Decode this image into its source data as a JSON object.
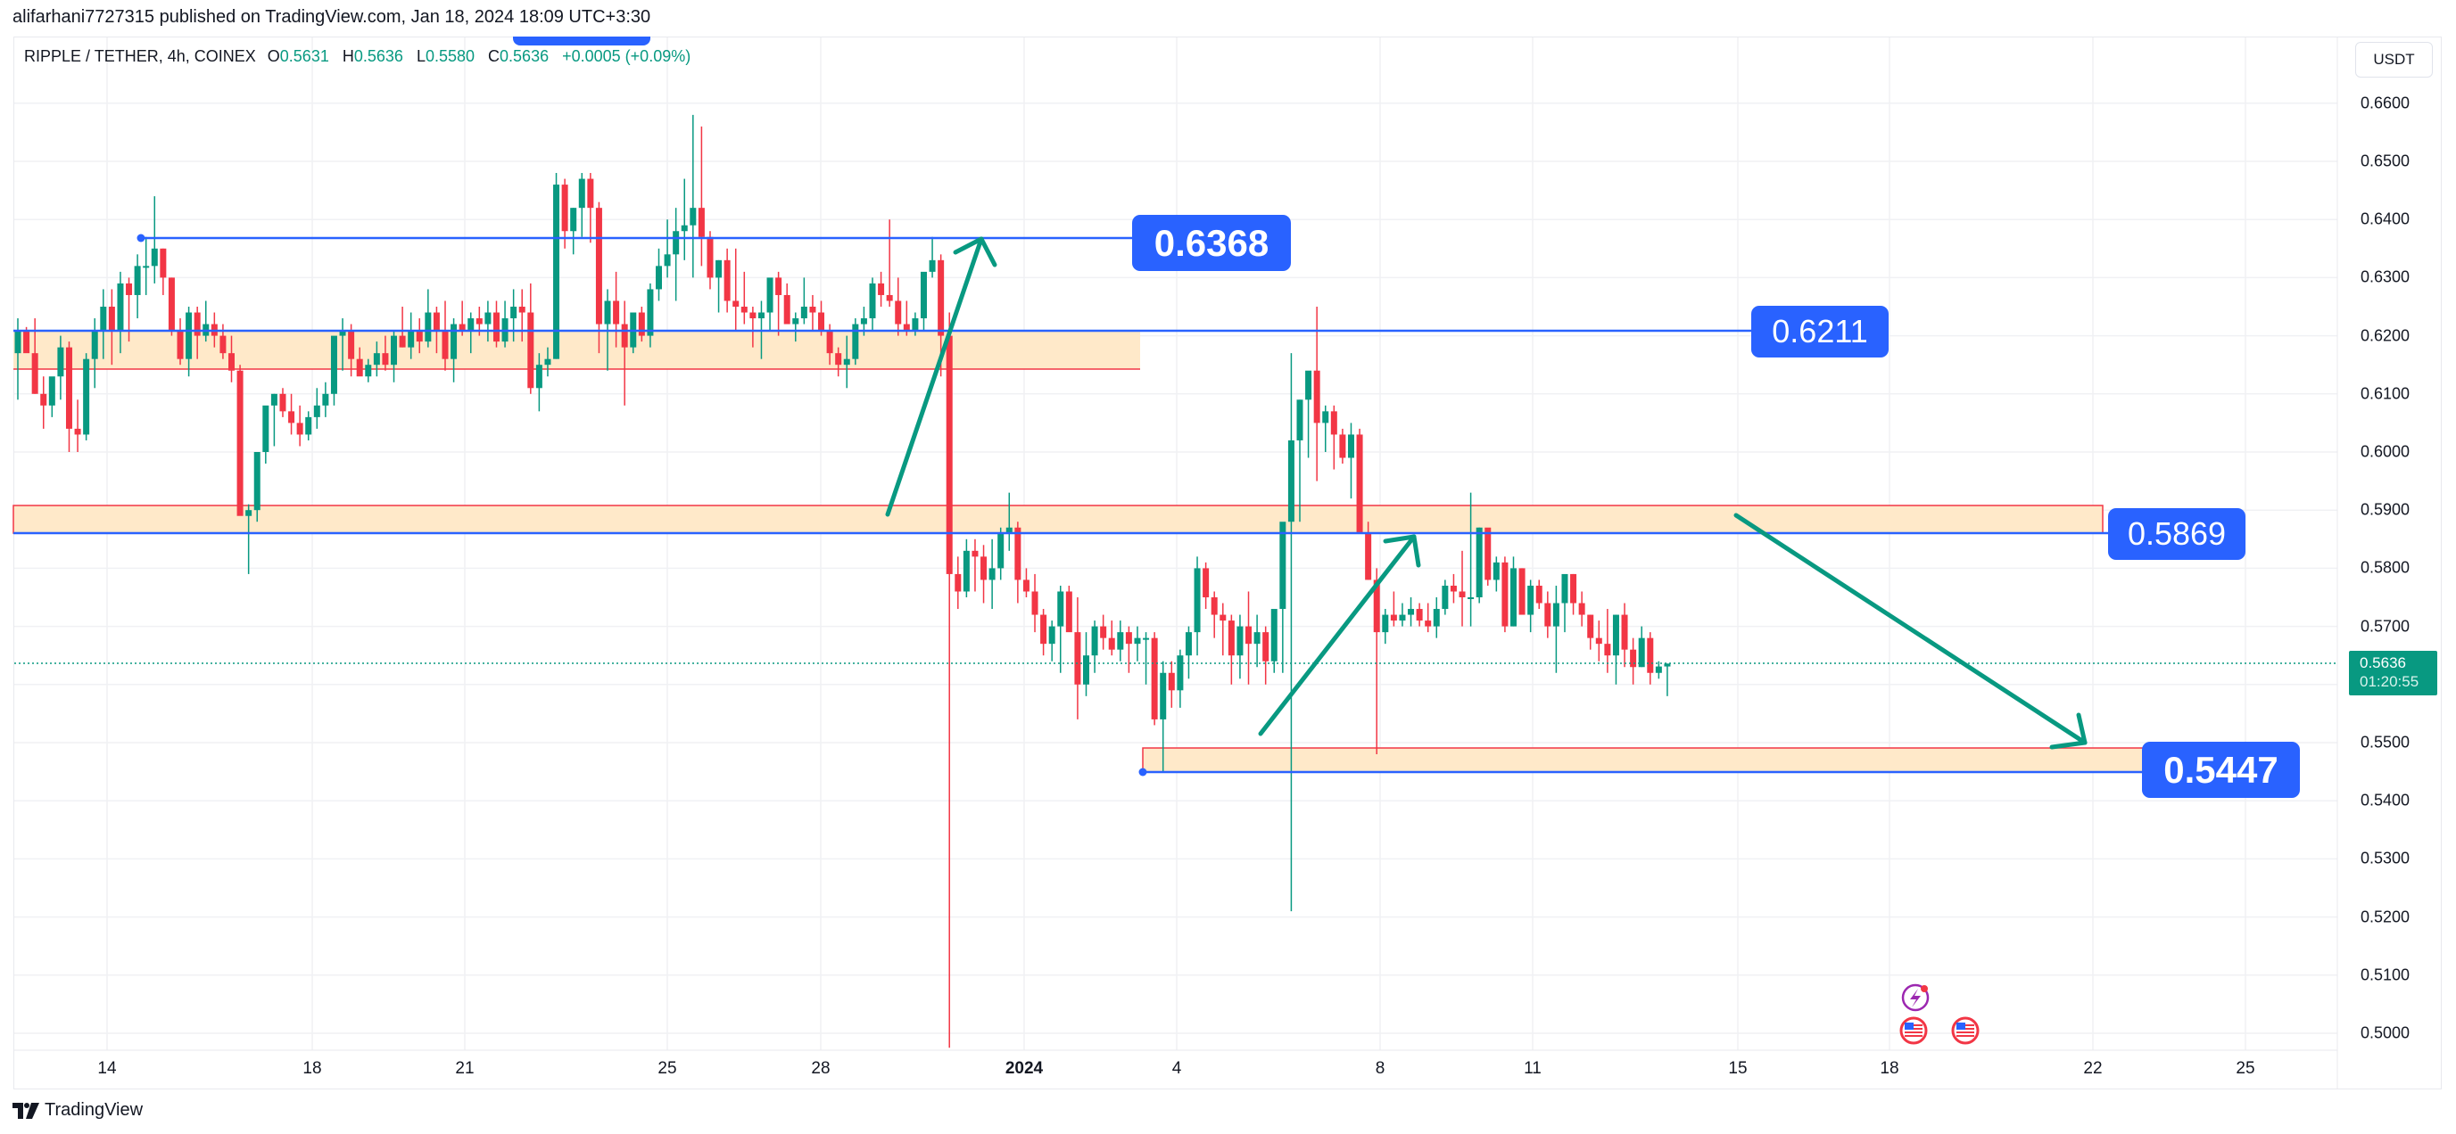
{
  "header": {
    "publisher_text": "alifarhani7727315 published on TradingView.com, Jan 18, 2024 18:09 UTC+3:30"
  },
  "legend": {
    "symbol": "RIPPLE / TETHER, 4h, COINEX",
    "open_label": "O",
    "open": "0.5631",
    "high_label": "H",
    "high": "0.5636",
    "low_label": "L",
    "low": "0.5580",
    "close_label": "C",
    "close": "0.5636",
    "change": "+0.0005 (+0.09%)"
  },
  "price_axis": {
    "unit_button": "USDT",
    "ticks": [
      "0.6600",
      "0.6500",
      "0.6400",
      "0.6300",
      "0.6200",
      "0.6100",
      "0.6000",
      "0.5900",
      "0.5800",
      "0.5700",
      "0.5500",
      "0.5400",
      "0.5300",
      "0.5200",
      "0.5100",
      "0.5000"
    ],
    "current_price": "0.5636",
    "countdown": "01:20:55"
  },
  "time_axis": {
    "ticks": [
      {
        "label": "14",
        "x": 120,
        "bold": false
      },
      {
        "label": "18",
        "x": 350,
        "bold": false
      },
      {
        "label": "21",
        "x": 521,
        "bold": false
      },
      {
        "label": "25",
        "x": 748,
        "bold": false
      },
      {
        "label": "28",
        "x": 920,
        "bold": false
      },
      {
        "label": "2024",
        "x": 1148,
        "bold": true
      },
      {
        "label": "4",
        "x": 1319,
        "bold": false
      },
      {
        "label": "8",
        "x": 1547,
        "bold": false
      },
      {
        "label": "11",
        "x": 1718,
        "bold": false
      },
      {
        "label": "15",
        "x": 1948,
        "bold": false
      },
      {
        "label": "18",
        "x": 2118,
        "bold": false
      },
      {
        "label": "22",
        "x": 2346,
        "bold": false
      },
      {
        "label": "25",
        "x": 2517,
        "bold": false
      }
    ]
  },
  "annotations": {
    "level_1": "0.6368",
    "level_2": "0.6211",
    "level_3": "0.5869",
    "level_4": "0.5447"
  },
  "colors": {
    "up": "#089981",
    "down": "#f23645",
    "drawing_blue": "#2962ff",
    "zone_fill": "#ffe9c9",
    "zone_border": "#f23645",
    "arrow": "#089981"
  },
  "footer": {
    "brand": "TradingView"
  },
  "chart_data": {
    "type": "candlestick",
    "title": "RIPPLE / TETHER, 4h, COINEX",
    "ylabel": "USDT",
    "ylim": [
      0.4975,
      0.662
    ],
    "x_ticks": [
      "14",
      "18",
      "21",
      "25",
      "28",
      "2024",
      "4",
      "8",
      "11",
      "15",
      "18",
      "22",
      "25"
    ],
    "horizontal_levels": [
      0.6368,
      0.6211,
      0.5869,
      0.5447
    ],
    "zones": [
      {
        "from": 0.615,
        "to": 0.6211
      },
      {
        "from": 0.5869,
        "to": 0.591
      },
      {
        "from": 0.5447,
        "to": 0.5485
      }
    ],
    "last": {
      "open": 0.5631,
      "high": 0.5636,
      "low": 0.558,
      "close": 0.5636
    },
    "candles": [
      [
        0.617,
        0.623,
        0.609,
        0.621
      ],
      [
        0.621,
        0.6215,
        0.618,
        0.617
      ],
      [
        0.617,
        0.623,
        0.61,
        0.61
      ],
      [
        0.61,
        0.613,
        0.604,
        0.608
      ],
      [
        0.608,
        0.611,
        0.606,
        0.613
      ],
      [
        0.613,
        0.62,
        0.609,
        0.618
      ],
      [
        0.618,
        0.619,
        0.6,
        0.604
      ],
      [
        0.604,
        0.609,
        0.6,
        0.603
      ],
      [
        0.603,
        0.617,
        0.602,
        0.616
      ],
      [
        0.616,
        0.623,
        0.611,
        0.621
      ],
      [
        0.621,
        0.628,
        0.616,
        0.625
      ],
      [
        0.625,
        0.628,
        0.615,
        0.621
      ],
      [
        0.621,
        0.631,
        0.617,
        0.629
      ],
      [
        0.629,
        0.63,
        0.619,
        0.627
      ],
      [
        0.627,
        0.634,
        0.623,
        0.632
      ],
      [
        0.632,
        0.637,
        0.627,
        0.632
      ],
      [
        0.632,
        0.644,
        0.629,
        0.635
      ],
      [
        0.635,
        0.635,
        0.627,
        0.63
      ],
      [
        0.63,
        0.63,
        0.62,
        0.621
      ],
      [
        0.621,
        0.623,
        0.615,
        0.616
      ],
      [
        0.616,
        0.625,
        0.613,
        0.624
      ],
      [
        0.624,
        0.625,
        0.616,
        0.62
      ],
      [
        0.62,
        0.626,
        0.619,
        0.622
      ],
      [
        0.622,
        0.624,
        0.618,
        0.62
      ],
      [
        0.62,
        0.622,
        0.616,
        0.617
      ],
      [
        0.617,
        0.62,
        0.612,
        0.614
      ],
      [
        0.614,
        0.615,
        0.59,
        0.589
      ],
      [
        0.589,
        0.591,
        0.579,
        0.59
      ],
      [
        0.59,
        0.595,
        0.588,
        0.6
      ],
      [
        0.6,
        0.605,
        0.598,
        0.608
      ],
      [
        0.608,
        0.61,
        0.601,
        0.61
      ],
      [
        0.61,
        0.611,
        0.606,
        0.607
      ],
      [
        0.607,
        0.61,
        0.603,
        0.605
      ],
      [
        0.605,
        0.608,
        0.601,
        0.603
      ],
      [
        0.603,
        0.607,
        0.602,
        0.606
      ],
      [
        0.606,
        0.611,
        0.604,
        0.608
      ],
      [
        0.608,
        0.612,
        0.606,
        0.61
      ],
      [
        0.61,
        0.617,
        0.608,
        0.62
      ],
      [
        0.62,
        0.623,
        0.614,
        0.621
      ],
      [
        0.621,
        0.622,
        0.613,
        0.616
      ],
      [
        0.616,
        0.618,
        0.614,
        0.613
      ],
      [
        0.613,
        0.616,
        0.612,
        0.615
      ],
      [
        0.615,
        0.619,
        0.613,
        0.617
      ],
      [
        0.617,
        0.62,
        0.614,
        0.615
      ],
      [
        0.615,
        0.621,
        0.612,
        0.62
      ],
      [
        0.62,
        0.625,
        0.618,
        0.618
      ],
      [
        0.618,
        0.624,
        0.616,
        0.621
      ],
      [
        0.621,
        0.623,
        0.617,
        0.619
      ],
      [
        0.619,
        0.628,
        0.618,
        0.624
      ],
      [
        0.624,
        0.625,
        0.617,
        0.621
      ],
      [
        0.621,
        0.626,
        0.614,
        0.616
      ],
      [
        0.616,
        0.623,
        0.612,
        0.622
      ],
      [
        0.622,
        0.626,
        0.62,
        0.621
      ],
      [
        0.621,
        0.624,
        0.617,
        0.623
      ],
      [
        0.623,
        0.625,
        0.62,
        0.622
      ],
      [
        0.622,
        0.626,
        0.619,
        0.624
      ],
      [
        0.624,
        0.626,
        0.618,
        0.619
      ],
      [
        0.619,
        0.626,
        0.618,
        0.623
      ],
      [
        0.623,
        0.628,
        0.619,
        0.625
      ],
      [
        0.625,
        0.628,
        0.619,
        0.624
      ],
      [
        0.624,
        0.629,
        0.61,
        0.611
      ],
      [
        0.611,
        0.617,
        0.607,
        0.615
      ],
      [
        0.615,
        0.618,
        0.613,
        0.616
      ],
      [
        0.616,
        0.648,
        0.616,
        0.646
      ],
      [
        0.646,
        0.647,
        0.635,
        0.638
      ],
      [
        0.638,
        0.642,
        0.634,
        0.642
      ],
      [
        0.642,
        0.648,
        0.637,
        0.647
      ],
      [
        0.647,
        0.648,
        0.636,
        0.642
      ],
      [
        0.642,
        0.643,
        0.617,
        0.622
      ],
      [
        0.622,
        0.628,
        0.614,
        0.626
      ],
      [
        0.626,
        0.631,
        0.618,
        0.622
      ],
      [
        0.622,
        0.626,
        0.608,
        0.618
      ],
      [
        0.618,
        0.623,
        0.617,
        0.624
      ],
      [
        0.624,
        0.625,
        0.619,
        0.62
      ],
      [
        0.62,
        0.629,
        0.618,
        0.628
      ],
      [
        0.628,
        0.635,
        0.626,
        0.632
      ],
      [
        0.632,
        0.64,
        0.63,
        0.634
      ],
      [
        0.634,
        0.642,
        0.626,
        0.638
      ],
      [
        0.638,
        0.647,
        0.633,
        0.639
      ],
      [
        0.639,
        0.658,
        0.63,
        0.642
      ],
      [
        0.642,
        0.656,
        0.632,
        0.637
      ],
      [
        0.637,
        0.638,
        0.628,
        0.63
      ],
      [
        0.63,
        0.633,
        0.624,
        0.633
      ],
      [
        0.633,
        0.635,
        0.624,
        0.626
      ],
      [
        0.626,
        0.635,
        0.621,
        0.625
      ],
      [
        0.625,
        0.631,
        0.622,
        0.624
      ],
      [
        0.624,
        0.625,
        0.618,
        0.623
      ],
      [
        0.623,
        0.626,
        0.616,
        0.624
      ],
      [
        0.624,
        0.629,
        0.621,
        0.63
      ],
      [
        0.63,
        0.631,
        0.62,
        0.627
      ],
      [
        0.627,
        0.629,
        0.623,
        0.622
      ],
      [
        0.622,
        0.624,
        0.619,
        0.623
      ],
      [
        0.623,
        0.63,
        0.622,
        0.625
      ],
      [
        0.625,
        0.627,
        0.621,
        0.624
      ],
      [
        0.624,
        0.626,
        0.62,
        0.621
      ],
      [
        0.621,
        0.622,
        0.615,
        0.617
      ],
      [
        0.617,
        0.618,
        0.613,
        0.615
      ],
      [
        0.615,
        0.62,
        0.611,
        0.616
      ],
      [
        0.616,
        0.623,
        0.615,
        0.622
      ],
      [
        0.622,
        0.625,
        0.62,
        0.623
      ],
      [
        0.623,
        0.63,
        0.621,
        0.629
      ],
      [
        0.629,
        0.631,
        0.625,
        0.627
      ],
      [
        0.627,
        0.64,
        0.625,
        0.626
      ],
      [
        0.626,
        0.63,
        0.62,
        0.622
      ],
      [
        0.622,
        0.626,
        0.62,
        0.621
      ],
      [
        0.621,
        0.624,
        0.62,
        0.623
      ],
      [
        0.623,
        0.63,
        0.621,
        0.631
      ],
      [
        0.631,
        0.637,
        0.63,
        0.633
      ],
      [
        0.633,
        0.634,
        0.613,
        0.62
      ],
      [
        0.62,
        0.624,
        0.4975,
        0.579
      ],
      [
        0.579,
        0.582,
        0.573,
        0.576
      ],
      [
        0.576,
        0.585,
        0.575,
        0.583
      ],
      [
        0.583,
        0.585,
        0.576,
        0.582
      ],
      [
        0.582,
        0.584,
        0.574,
        0.578
      ],
      [
        0.578,
        0.585,
        0.573,
        0.58
      ],
      [
        0.58,
        0.587,
        0.578,
        0.586
      ],
      [
        0.586,
        0.593,
        0.583,
        0.587
      ],
      [
        0.587,
        0.588,
        0.574,
        0.578
      ],
      [
        0.578,
        0.58,
        0.575,
        0.576
      ],
      [
        0.576,
        0.579,
        0.569,
        0.572
      ],
      [
        0.572,
        0.573,
        0.565,
        0.567
      ],
      [
        0.567,
        0.571,
        0.564,
        0.57
      ],
      [
        0.57,
        0.577,
        0.562,
        0.576
      ],
      [
        0.576,
        0.577,
        0.571,
        0.569
      ],
      [
        0.569,
        0.575,
        0.554,
        0.56
      ],
      [
        0.56,
        0.569,
        0.558,
        0.565
      ],
      [
        0.565,
        0.571,
        0.562,
        0.57
      ],
      [
        0.57,
        0.572,
        0.566,
        0.568
      ],
      [
        0.568,
        0.571,
        0.565,
        0.566
      ],
      [
        0.566,
        0.571,
        0.564,
        0.569
      ],
      [
        0.569,
        0.57,
        0.562,
        0.567
      ],
      [
        0.567,
        0.57,
        0.564,
        0.568
      ],
      [
        0.568,
        0.569,
        0.56,
        0.568
      ],
      [
        0.568,
        0.569,
        0.553,
        0.554
      ],
      [
        0.554,
        0.564,
        0.545,
        0.562
      ],
      [
        0.562,
        0.564,
        0.556,
        0.559
      ],
      [
        0.559,
        0.566,
        0.556,
        0.565
      ],
      [
        0.565,
        0.57,
        0.561,
        0.569
      ],
      [
        0.569,
        0.582,
        0.565,
        0.58
      ],
      [
        0.58,
        0.581,
        0.573,
        0.575
      ],
      [
        0.575,
        0.576,
        0.568,
        0.572
      ],
      [
        0.572,
        0.574,
        0.565,
        0.571
      ],
      [
        0.571,
        0.572,
        0.56,
        0.565
      ],
      [
        0.565,
        0.572,
        0.561,
        0.57
      ],
      [
        0.57,
        0.576,
        0.56,
        0.567
      ],
      [
        0.567,
        0.572,
        0.563,
        0.569
      ],
      [
        0.569,
        0.57,
        0.56,
        0.564
      ],
      [
        0.564,
        0.571,
        0.562,
        0.573
      ],
      [
        0.573,
        0.581,
        0.562,
        0.588
      ],
      [
        0.588,
        0.617,
        0.521,
        0.602
      ],
      [
        0.602,
        0.609,
        0.588,
        0.609
      ],
      [
        0.609,
        0.613,
        0.599,
        0.614
      ],
      [
        0.614,
        0.625,
        0.595,
        0.605
      ],
      [
        0.605,
        0.608,
        0.6,
        0.607
      ],
      [
        0.607,
        0.608,
        0.597,
        0.603
      ],
      [
        0.603,
        0.604,
        0.598,
        0.599
      ],
      [
        0.599,
        0.605,
        0.592,
        0.603
      ],
      [
        0.603,
        0.604,
        0.586,
        0.586
      ],
      [
        0.586,
        0.588,
        0.578,
        0.578
      ],
      [
        0.578,
        0.58,
        0.548,
        0.569
      ],
      [
        0.569,
        0.573,
        0.567,
        0.572
      ],
      [
        0.572,
        0.576,
        0.57,
        0.571
      ],
      [
        0.571,
        0.574,
        0.57,
        0.572
      ],
      [
        0.572,
        0.575,
        0.57,
        0.573
      ],
      [
        0.573,
        0.574,
        0.57,
        0.571
      ],
      [
        0.571,
        0.574,
        0.569,
        0.57
      ],
      [
        0.57,
        0.575,
        0.568,
        0.573
      ],
      [
        0.573,
        0.578,
        0.572,
        0.577
      ],
      [
        0.577,
        0.579,
        0.574,
        0.576
      ],
      [
        0.576,
        0.583,
        0.57,
        0.575
      ],
      [
        0.575,
        0.593,
        0.57,
        0.575
      ],
      [
        0.575,
        0.587,
        0.574,
        0.587
      ],
      [
        0.587,
        0.586,
        0.577,
        0.578
      ],
      [
        0.578,
        0.582,
        0.576,
        0.581
      ],
      [
        0.581,
        0.582,
        0.569,
        0.57
      ],
      [
        0.57,
        0.582,
        0.57,
        0.58
      ],
      [
        0.58,
        0.58,
        0.574,
        0.572
      ],
      [
        0.572,
        0.578,
        0.569,
        0.577
      ],
      [
        0.577,
        0.578,
        0.573,
        0.574
      ],
      [
        0.574,
        0.576,
        0.568,
        0.57
      ],
      [
        0.57,
        0.577,
        0.562,
        0.574
      ],
      [
        0.574,
        0.578,
        0.569,
        0.579
      ],
      [
        0.579,
        0.579,
        0.572,
        0.574
      ],
      [
        0.574,
        0.576,
        0.57,
        0.572
      ],
      [
        0.572,
        0.572,
        0.566,
        0.568
      ],
      [
        0.568,
        0.571,
        0.564,
        0.567
      ],
      [
        0.567,
        0.573,
        0.562,
        0.565
      ],
      [
        0.565,
        0.572,
        0.56,
        0.572
      ],
      [
        0.572,
        0.574,
        0.563,
        0.566
      ],
      [
        0.566,
        0.568,
        0.56,
        0.563
      ],
      [
        0.563,
        0.57,
        0.563,
        0.568
      ],
      [
        0.568,
        0.569,
        0.56,
        0.562
      ],
      [
        0.562,
        0.564,
        0.561,
        0.5631
      ],
      [
        0.5631,
        0.5636,
        0.558,
        0.5636
      ]
    ]
  }
}
